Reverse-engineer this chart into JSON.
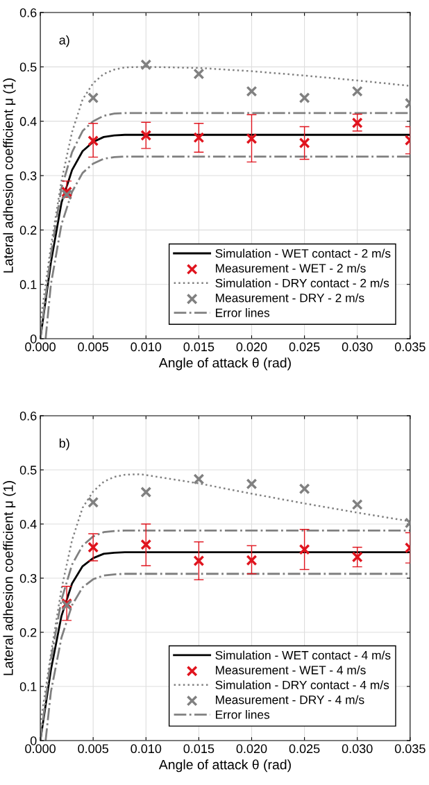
{
  "chart_data": [
    {
      "type": "line",
      "xlabel": "Angle of attack θ (rad)",
      "ylabel": "Lateral adhesion coefficient μ (1)",
      "annotations": [
        "a)"
      ],
      "xlim": [
        0,
        0.035
      ],
      "ylim": [
        0,
        0.6
      ],
      "xticks": [
        {
          "value": 0,
          "label": "0.000"
        },
        {
          "value": 0.005,
          "label": "0.005"
        },
        {
          "value": 0.01,
          "label": "0.010"
        },
        {
          "value": 0.015,
          "label": "0.015"
        },
        {
          "value": 0.02,
          "label": "0.020"
        },
        {
          "value": 0.025,
          "label": "0.025"
        },
        {
          "value": 0.03,
          "label": "0.030"
        },
        {
          "value": 0.035,
          "label": "0.035"
        }
      ],
      "yticks": [
        0,
        0.1,
        0.2,
        0.3,
        0.4,
        0.5,
        0.6
      ],
      "grid": true,
      "legend": "bottom right",
      "series": [
        {
          "name": "Simulation - WET contact - 2 m/s",
          "line_style": "solid",
          "marker": "none",
          "color": "#000000",
          "x": [
            0,
            0.001,
            0.002,
            0.003,
            0.004,
            0.005,
            0.006,
            0.007,
            0.008,
            0.035
          ],
          "values": [
            0,
            0.14,
            0.25,
            0.31,
            0.345,
            0.362,
            0.371,
            0.374,
            0.375,
            0.375
          ]
        },
        {
          "name": "Measurement - WET - 2 m/s",
          "type": "scatter",
          "marker": "cross",
          "color": "#e0141e",
          "x": [
            0.0025,
            0.005,
            0.01,
            0.015,
            0.02,
            0.025,
            0.03,
            0.035
          ],
          "values": [
            0.27,
            0.364,
            0.374,
            0.37,
            0.368,
            0.36,
            0.397,
            0.365
          ],
          "errors": [
            [
              0.26,
              0.29
            ],
            [
              0.334,
              0.396
            ],
            [
              0.35,
              0.398
            ],
            [
              0.343,
              0.396
            ],
            [
              0.325,
              0.412
            ],
            [
              0.33,
              0.39
            ],
            [
              0.382,
              0.413
            ],
            [
              0.34,
              0.39
            ]
          ]
        },
        {
          "name": "Simulation - DRY contact - 2 m/s",
          "line_style": "dotted",
          "marker": "none",
          "color": "#808080",
          "x": [
            0,
            0.001,
            0.002,
            0.003,
            0.004,
            0.005,
            0.006,
            0.007,
            0.008,
            0.01,
            0.015,
            0.02,
            0.025,
            0.03,
            0.035
          ],
          "values": [
            0.03,
            0.17,
            0.29,
            0.38,
            0.44,
            0.47,
            0.487,
            0.495,
            0.499,
            0.5,
            0.498,
            0.492,
            0.484,
            0.475,
            0.465
          ]
        },
        {
          "name": "Measurement - DRY - 2 m/s",
          "type": "scatter",
          "marker": "cross",
          "color": "#808080",
          "x": [
            0.0025,
            0.005,
            0.01,
            0.015,
            0.02,
            0.025,
            0.03,
            0.035
          ],
          "values": [
            0.265,
            0.443,
            0.504,
            0.487,
            0.455,
            0.443,
            0.455,
            0.433
          ]
        },
        {
          "name": "Error lines",
          "line_style": "dashdot",
          "marker": "none",
          "color": "#808080",
          "x": [
            0,
            0.001,
            0.002,
            0.003,
            0.004,
            0.005,
            0.006,
            0.007,
            0.008,
            0.035
          ],
          "values": [
            0,
            0.155,
            0.277,
            0.343,
            0.382,
            0.4,
            0.41,
            0.414,
            0.415,
            0.415
          ]
        },
        {
          "line_style": "dashdot",
          "marker": "none",
          "color": "#808080",
          "x": [
            0.0005,
            0.001,
            0.002,
            0.003,
            0.004,
            0.005,
            0.006,
            0.007,
            0.008,
            0.035
          ],
          "values": [
            0,
            0.1,
            0.21,
            0.27,
            0.305,
            0.322,
            0.331,
            0.334,
            0.335,
            0.335
          ]
        }
      ]
    },
    {
      "type": "line",
      "xlabel": "Angle of attack θ (rad)",
      "ylabel": "Lateral adhesion coefficient μ (1)",
      "annotations": [
        "b)"
      ],
      "xlim": [
        0,
        0.035
      ],
      "ylim": [
        0,
        0.6
      ],
      "xticks": [
        {
          "value": 0,
          "label": "0.000"
        },
        {
          "value": 0.005,
          "label": "0.005"
        },
        {
          "value": 0.01,
          "label": "0.010"
        },
        {
          "value": 0.015,
          "label": "0.015"
        },
        {
          "value": 0.02,
          "label": "0.020"
        },
        {
          "value": 0.025,
          "label": "0.025"
        },
        {
          "value": 0.03,
          "label": "0.030"
        },
        {
          "value": 0.035,
          "label": "0.035"
        }
      ],
      "yticks": [
        0,
        0.1,
        0.2,
        0.3,
        0.4,
        0.5,
        0.6
      ],
      "grid": true,
      "legend": "bottom right",
      "series": [
        {
          "name": "Simulation - WET contact - 4 m/s",
          "line_style": "solid",
          "marker": "none",
          "color": "#000000",
          "x": [
            0,
            0.001,
            0.002,
            0.003,
            0.004,
            0.005,
            0.006,
            0.007,
            0.008,
            0.035
          ],
          "values": [
            0,
            0.13,
            0.23,
            0.29,
            0.322,
            0.337,
            0.345,
            0.347,
            0.348,
            0.348
          ]
        },
        {
          "name": "Measurement - WET - 4 m/s",
          "type": "scatter",
          "marker": "cross",
          "color": "#e0141e",
          "x": [
            0.0025,
            0.005,
            0.01,
            0.015,
            0.02,
            0.025,
            0.03,
            0.035
          ],
          "values": [
            0.253,
            0.357,
            0.362,
            0.332,
            0.333,
            0.353,
            0.339,
            0.356
          ],
          "errors": [
            [
              0.222,
              0.285
            ],
            [
              0.332,
              0.382
            ],
            [
              0.323,
              0.4
            ],
            [
              0.297,
              0.367
            ],
            [
              0.308,
              0.36
            ],
            [
              0.316,
              0.39
            ],
            [
              0.321,
              0.357
            ],
            [
              0.328,
              0.384
            ]
          ]
        },
        {
          "name": "Simulation - DRY contact - 4 m/s",
          "line_style": "dotted",
          "marker": "none",
          "color": "#808080",
          "x": [
            0,
            0.001,
            0.002,
            0.003,
            0.004,
            0.005,
            0.006,
            0.007,
            0.008,
            0.0095,
            0.015,
            0.02,
            0.025,
            0.03,
            0.035
          ],
          "values": [
            0.03,
            0.16,
            0.28,
            0.37,
            0.43,
            0.46,
            0.478,
            0.487,
            0.491,
            0.492,
            0.475,
            0.456,
            0.438,
            0.421,
            0.405
          ]
        },
        {
          "name": "Measurement - DRY - 4 m/s",
          "type": "scatter",
          "marker": "cross",
          "color": "#808080",
          "x": [
            0.0025,
            0.005,
            0.01,
            0.015,
            0.02,
            0.025,
            0.03,
            0.035
          ],
          "values": [
            0.25,
            0.44,
            0.459,
            0.483,
            0.474,
            0.465,
            0.436,
            0.402
          ]
        },
        {
          "name": "Error lines",
          "line_style": "dashdot",
          "marker": "none",
          "color": "#808080",
          "x": [
            0,
            0.001,
            0.002,
            0.003,
            0.004,
            0.005,
            0.006,
            0.007,
            0.008,
            0.035
          ],
          "values": [
            0,
            0.15,
            0.26,
            0.325,
            0.36,
            0.377,
            0.385,
            0.387,
            0.388,
            0.388
          ]
        },
        {
          "line_style": "dashdot",
          "marker": "none",
          "color": "#808080",
          "x": [
            0.0005,
            0.001,
            0.002,
            0.003,
            0.004,
            0.005,
            0.006,
            0.007,
            0.008,
            0.035
          ],
          "values": [
            0,
            0.09,
            0.19,
            0.25,
            0.283,
            0.298,
            0.305,
            0.307,
            0.308,
            0.308
          ]
        }
      ]
    }
  ]
}
